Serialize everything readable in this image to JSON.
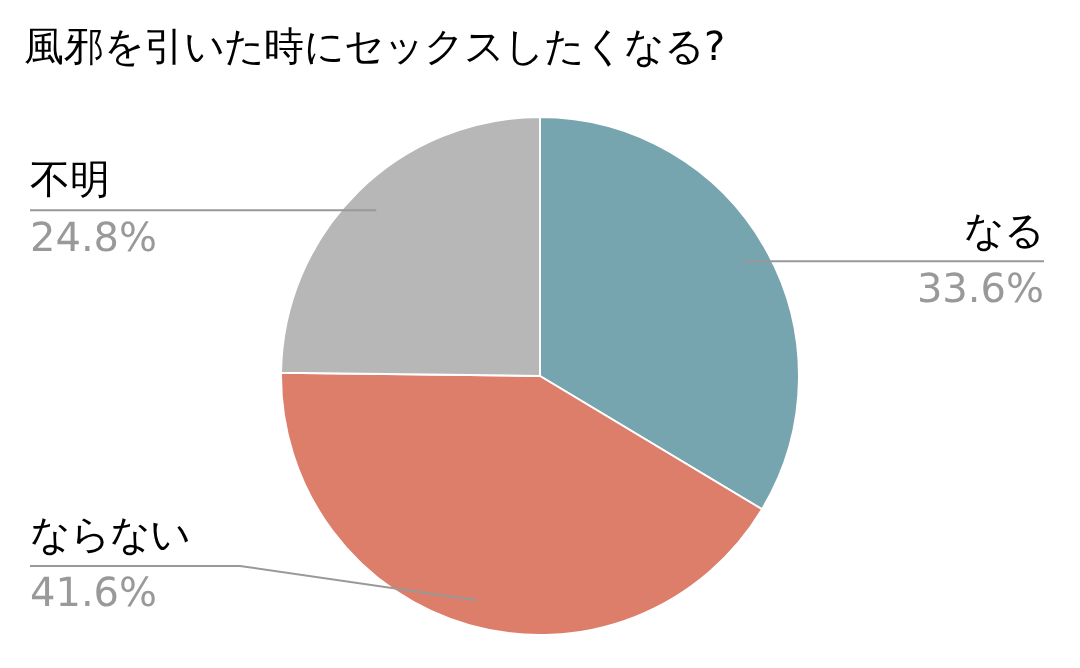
{
  "chart_data": {
    "type": "pie",
    "title": "風邪を引いた時にセックスしたくなる?",
    "categories": [
      "なる",
      "ならない",
      "不明"
    ],
    "values": [
      33.6,
      41.6,
      24.8
    ],
    "colors": [
      "#76a5af",
      "#dd7e6b",
      "#b7b7b7"
    ],
    "value_labels": [
      "33.6%",
      "41.6%",
      "24.8%"
    ],
    "legend": false
  }
}
